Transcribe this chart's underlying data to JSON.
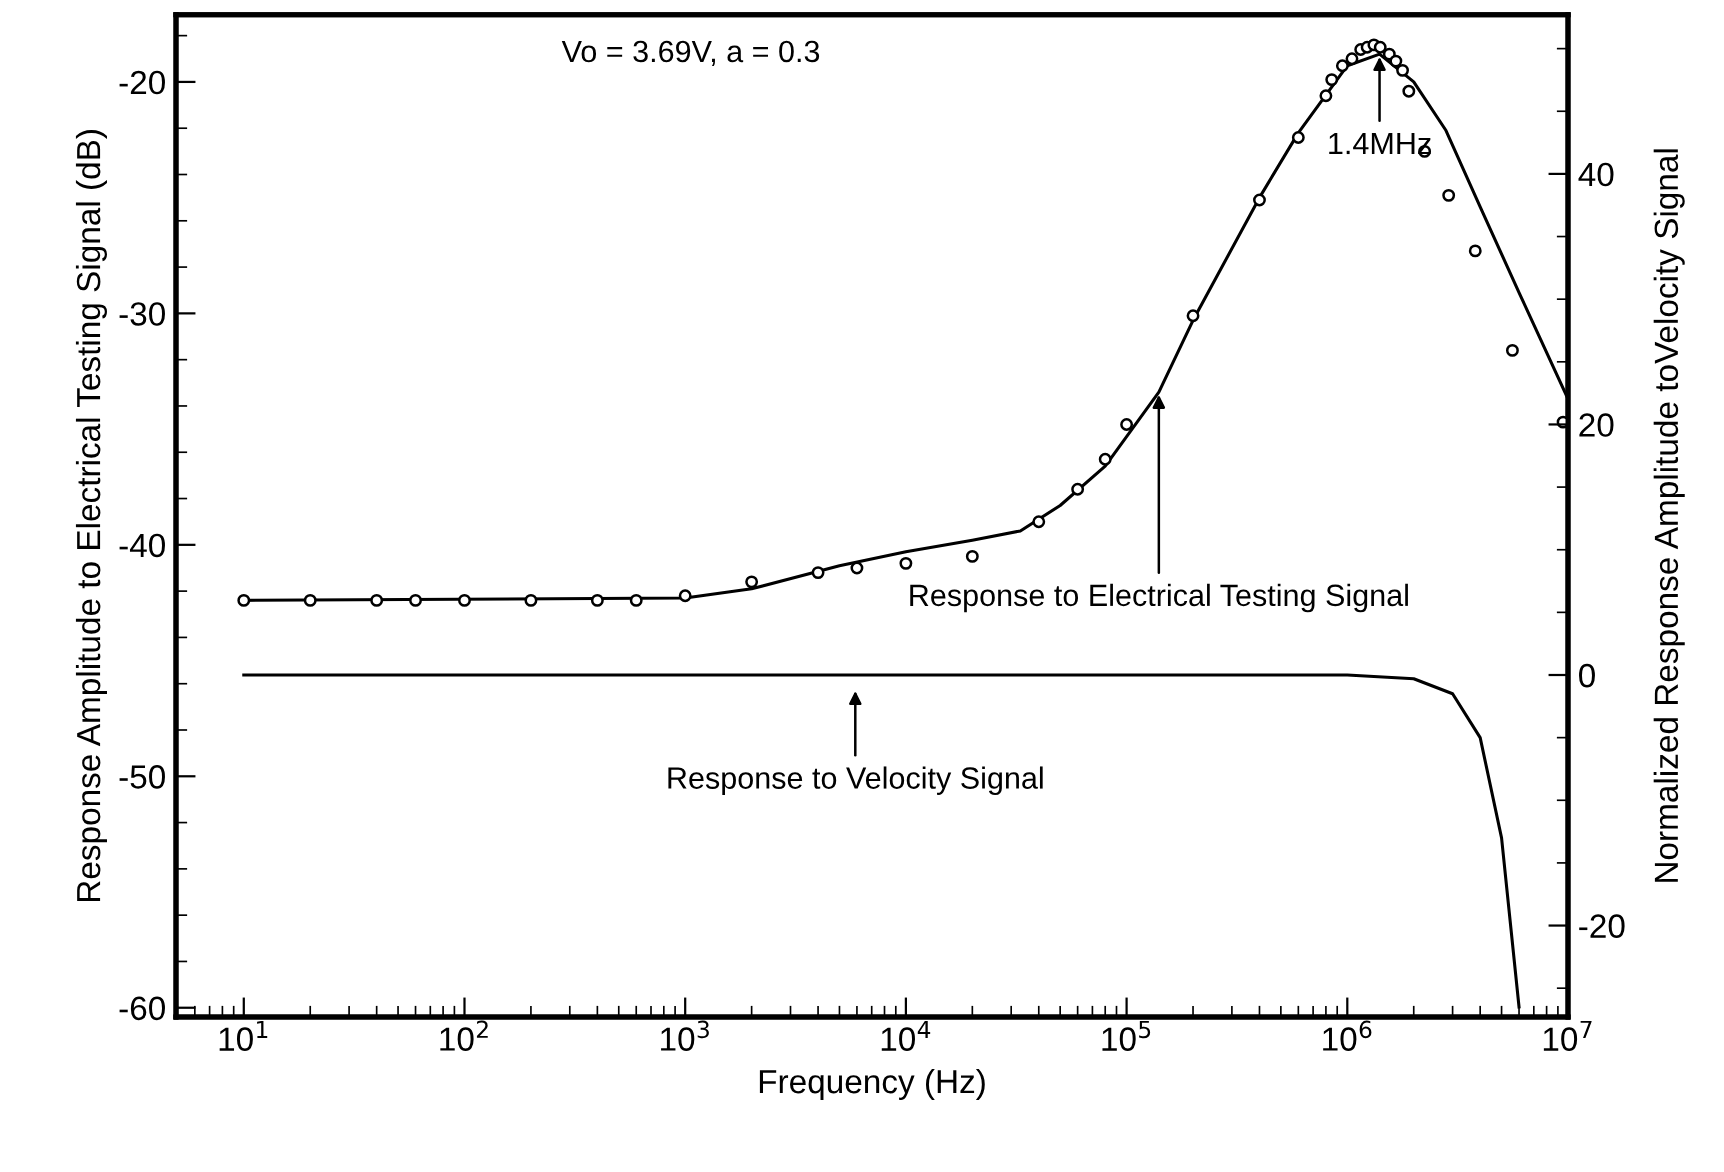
{
  "chart_data": {
    "type": "line",
    "xlabel": "Frequency (Hz)",
    "ylabel": "Response Amplitude to Electrical Testing Signal (dB)",
    "y2label": "Normalized Response Amplitude toVelocity Signal",
    "log": "x",
    "grid": false,
    "xlim": [
      4.93,
      10000000
    ],
    "xticks": [
      {
        "value": 10,
        "label": "10$^{1}$"
      },
      {
        "value": 100,
        "label": "10$^{2}$"
      },
      {
        "value": 1000,
        "label": "10$^{3}$"
      },
      {
        "value": 10000,
        "label": "10$^{4}$"
      },
      {
        "value": 100000,
        "label": "10$^{5}$"
      },
      {
        "value": 1000000,
        "label": "10$^{6}$"
      },
      {
        "value": 10000000,
        "label": "10$^{7}$"
      }
    ],
    "ylim": [
      -60.4,
      -17.1
    ],
    "yticks": [
      -60,
      -50,
      -40,
      -30,
      -20,
      {
        "value": -58,
        "label": null
      },
      {
        "value": -56,
        "label": null
      },
      {
        "value": -54,
        "label": null
      },
      {
        "value": -52,
        "label": null
      },
      {
        "value": -48,
        "label": null
      },
      {
        "value": -46,
        "label": null
      },
      {
        "value": -44,
        "label": null
      },
      {
        "value": -42,
        "label": null
      },
      {
        "value": -38,
        "label": null
      },
      {
        "value": -36,
        "label": null
      },
      {
        "value": -34,
        "label": null
      },
      {
        "value": -32,
        "label": null
      },
      {
        "value": -28,
        "label": null
      },
      {
        "value": -26,
        "label": null
      },
      {
        "value": -24,
        "label": null
      },
      {
        "value": -22,
        "label": null
      },
      {
        "value": -18,
        "label": null
      }
    ],
    "y2lim": [
      -27.3,
      52.7
    ],
    "y2ticks": [
      -20,
      0,
      20,
      40,
      {
        "value": -25,
        "label": null
      },
      {
        "value": -15,
        "label": null
      },
      {
        "value": -10,
        "label": null
      },
      {
        "value": -5,
        "label": null
      },
      {
        "value": 5,
        "label": null
      },
      {
        "value": 10,
        "label": null
      },
      {
        "value": 15,
        "label": null
      },
      {
        "value": 25,
        "label": null
      },
      {
        "value": 30,
        "label": null
      },
      {
        "value": 35,
        "label": null
      },
      {
        "value": 45,
        "label": null
      },
      {
        "value": 50,
        "label": null
      }
    ],
    "series": [
      {
        "type": "scatter",
        "marker": "circle",
        "color": "#000000",
        "x": [
          10,
          20,
          40,
          60,
          100,
          200,
          400,
          600,
          1000,
          2000,
          4000,
          6000,
          10000,
          20000,
          40000,
          60000,
          80000,
          100000,
          200000,
          400000,
          600000,
          800000,
          850000,
          950000,
          1050000,
          1150000,
          1230000,
          1320000,
          1410000,
          1550000,
          1660000,
          1780000,
          1900000,
          2240000,
          2880000,
          3800000,
          5600000,
          9500000
        ],
        "values": [
          -42.4,
          -42.4,
          -42.4,
          -42.4,
          -42.4,
          -42.4,
          -42.4,
          -42.4,
          -42.2,
          -41.6,
          -41.2,
          -41.0,
          -40.8,
          -40.5,
          -39.0,
          -37.6,
          -36.3,
          -34.8,
          -30.1,
          -25.1,
          -22.4,
          -20.6,
          -19.9,
          -19.3,
          -19.0,
          -18.6,
          -18.5,
          -18.4,
          -18.5,
          -18.8,
          -19.1,
          -19.5,
          -20.4,
          -23.0,
          -24.9,
          -27.3,
          -31.6,
          -34.7
        ]
      },
      {
        "line_style": "solid",
        "color": "#000000",
        "x": [
          10,
          1000,
          2000,
          5000,
          10000,
          20000,
          33000,
          50000,
          80000,
          140000,
          200000,
          400000,
          600000,
          1000000,
          1400000,
          2000000,
          2800000,
          4000000,
          6000000,
          10000000
        ],
        "values": [
          -42.4,
          -42.3,
          -41.9,
          -40.9,
          -40.3,
          -39.8,
          -39.4,
          -38.3,
          -36.6,
          -33.4,
          -30.3,
          -25.0,
          -22.2,
          -19.3,
          -18.8,
          -20.0,
          -22.1,
          -25.4,
          -29.1,
          -33.7
        ]
      },
      {
        "line_style": "solid",
        "axis": "y2",
        "color": "#000000",
        "x": [
          10,
          500000,
          1000000,
          2000000,
          3000000,
          4000000,
          5000000,
          6000000
        ],
        "values": [
          0,
          0,
          0,
          -0.3,
          -1.5,
          -5,
          -13,
          -26.5
        ]
      }
    ],
    "annotations": [
      "Vo = 3.69V, a = 0.3",
      {
        "text": "1.4MHz",
        "x": 1400000,
        "y": -18.8
      },
      {
        "text": "Response to Electrical Testing Signal",
        "x": 140000,
        "y": -33.4
      },
      "Response to Velocity Signal"
    ]
  }
}
